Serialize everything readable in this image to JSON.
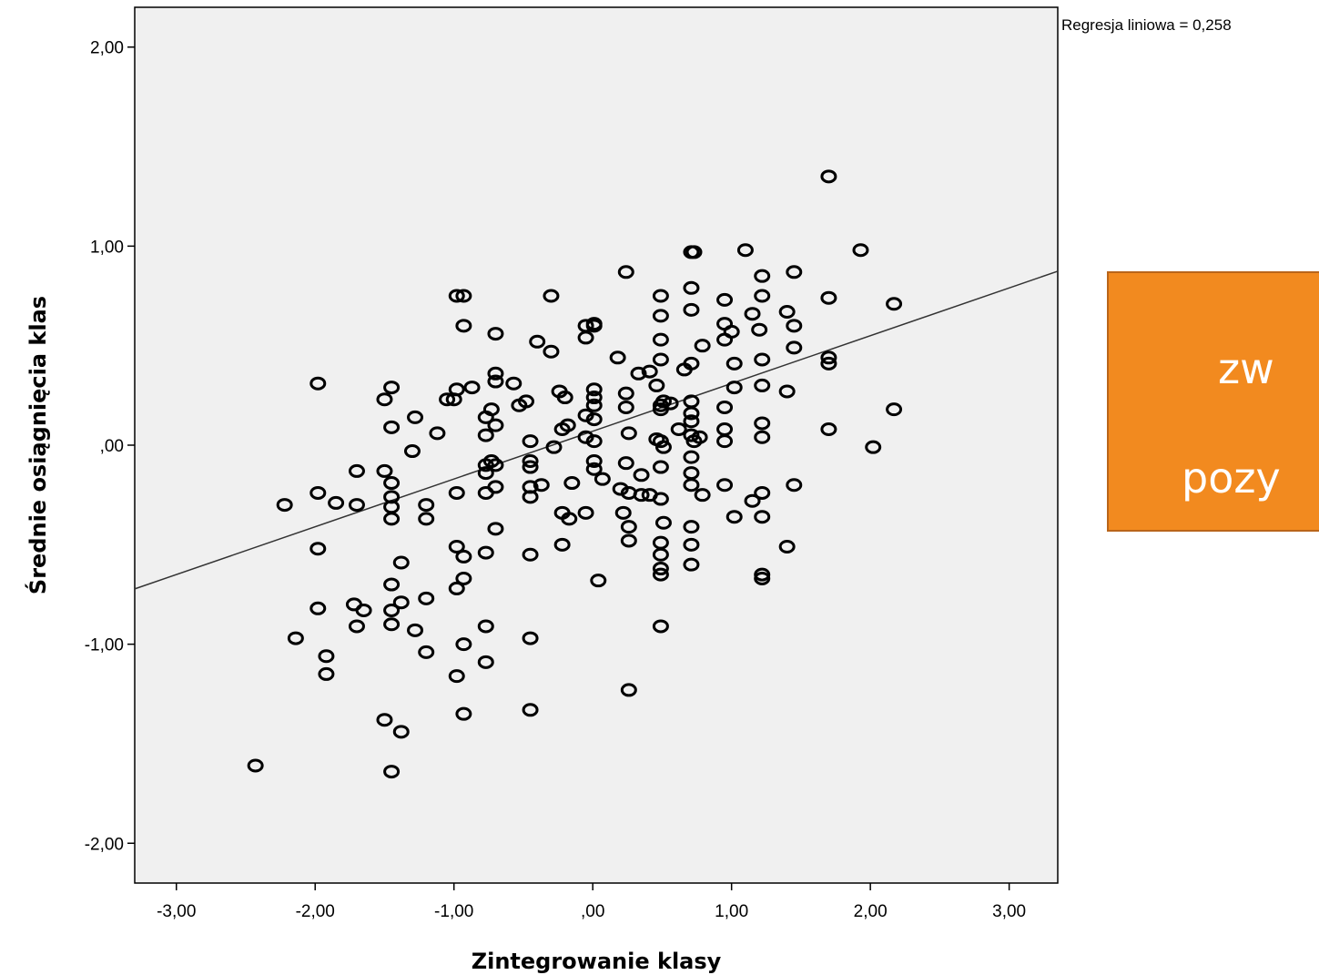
{
  "chart_data": {
    "type": "scatter",
    "xlabel": "Zintegrowanie klasy",
    "ylabel": "Średnie osiągnięcia klas",
    "xlim": [
      -3.3,
      3.35
    ],
    "ylim": [
      -2.2,
      2.2
    ],
    "xticks": [
      -3,
      -2,
      -1,
      0,
      1,
      2,
      3
    ],
    "yticks": [
      -2,
      -1,
      0,
      1,
      2
    ],
    "xtick_labels": [
      "-3,00",
      "-2,00",
      "-1,00",
      ",00",
      "1,00",
      "2,00",
      "3,00"
    ],
    "ytick_labels": [
      "-2,00",
      "-1,00",
      ",00",
      "1,00",
      "2,00"
    ],
    "grid": false,
    "fit_line": {
      "label": "Regresja liniowa = 0,258",
      "intercept": 0.07,
      "slope": 0.24
    },
    "points": [
      [
        -2.43,
        -1.61
      ],
      [
        -2.22,
        -0.3
      ],
      [
        -2.14,
        -0.97
      ],
      [
        -1.98,
        0.31
      ],
      [
        -1.98,
        -0.24
      ],
      [
        -1.98,
        -0.52
      ],
      [
        -1.98,
        -0.82
      ],
      [
        -1.92,
        -1.06
      ],
      [
        -1.92,
        -1.15
      ],
      [
        -1.85,
        -0.29
      ],
      [
        -1.72,
        -0.8
      ],
      [
        -1.7,
        -0.13
      ],
      [
        -1.7,
        -0.3
      ],
      [
        -1.7,
        -0.91
      ],
      [
        -1.65,
        -0.83
      ],
      [
        -1.5,
        0.23
      ],
      [
        -1.5,
        -0.13
      ],
      [
        -1.5,
        -1.38
      ],
      [
        -1.45,
        0.29
      ],
      [
        -1.45,
        0.09
      ],
      [
        -1.45,
        -0.19
      ],
      [
        -1.45,
        -0.26
      ],
      [
        -1.45,
        -0.31
      ],
      [
        -1.45,
        -0.37
      ],
      [
        -1.45,
        -0.7
      ],
      [
        -1.45,
        -0.83
      ],
      [
        -1.45,
        -0.9
      ],
      [
        -1.45,
        -1.64
      ],
      [
        -1.38,
        -0.59
      ],
      [
        -1.38,
        -0.79
      ],
      [
        -1.38,
        -1.44
      ],
      [
        -1.3,
        -0.03
      ],
      [
        -1.28,
        0.14
      ],
      [
        -1.28,
        -0.93
      ],
      [
        -1.2,
        -0.3
      ],
      [
        -1.2,
        -0.37
      ],
      [
        -1.2,
        -0.77
      ],
      [
        -1.2,
        -1.04
      ],
      [
        -1.12,
        0.06
      ],
      [
        -1.05,
        0.23
      ],
      [
        -1.0,
        0.23
      ],
      [
        -0.98,
        0.75
      ],
      [
        -0.98,
        0.28
      ],
      [
        -0.98,
        -0.24
      ],
      [
        -0.98,
        -0.51
      ],
      [
        -0.98,
        -0.72
      ],
      [
        -0.98,
        -1.16
      ],
      [
        -0.93,
        0.75
      ],
      [
        -0.93,
        0.6
      ],
      [
        -0.93,
        -0.56
      ],
      [
        -0.93,
        -0.67
      ],
      [
        -0.93,
        -1.0
      ],
      [
        -0.93,
        -1.35
      ],
      [
        -0.87,
        0.29
      ],
      [
        -0.77,
        0.14
      ],
      [
        -0.77,
        0.05
      ],
      [
        -0.77,
        -0.1
      ],
      [
        -0.77,
        -0.14
      ],
      [
        -0.77,
        -0.24
      ],
      [
        -0.77,
        -0.54
      ],
      [
        -0.77,
        -0.91
      ],
      [
        -0.77,
        -1.09
      ],
      [
        -0.73,
        0.18
      ],
      [
        -0.73,
        -0.08
      ],
      [
        -0.7,
        0.56
      ],
      [
        -0.7,
        0.36
      ],
      [
        -0.7,
        0.32
      ],
      [
        -0.7,
        0.1
      ],
      [
        -0.7,
        -0.1
      ],
      [
        -0.7,
        -0.21
      ],
      [
        -0.7,
        -0.42
      ],
      [
        -0.57,
        0.31
      ],
      [
        -0.53,
        0.2
      ],
      [
        -0.48,
        0.22
      ],
      [
        -0.45,
        0.02
      ],
      [
        -0.45,
        -0.08
      ],
      [
        -0.45,
        -0.11
      ],
      [
        -0.45,
        -0.21
      ],
      [
        -0.45,
        -0.26
      ],
      [
        -0.45,
        -0.55
      ],
      [
        -0.45,
        -0.97
      ],
      [
        -0.45,
        -1.33
      ],
      [
        -0.4,
        0.52
      ],
      [
        -0.37,
        -0.2
      ],
      [
        -0.3,
        0.75
      ],
      [
        -0.3,
        0.47
      ],
      [
        -0.28,
        -0.01
      ],
      [
        -0.24,
        0.27
      ],
      [
        -0.22,
        0.08
      ],
      [
        -0.22,
        -0.34
      ],
      [
        -0.22,
        -0.5
      ],
      [
        -0.2,
        0.24
      ],
      [
        -0.18,
        0.1
      ],
      [
        -0.17,
        -0.37
      ],
      [
        -0.15,
        -0.19
      ],
      [
        -0.05,
        0.6
      ],
      [
        -0.05,
        0.54
      ],
      [
        -0.05,
        0.15
      ],
      [
        -0.05,
        0.04
      ],
      [
        -0.05,
        -0.34
      ],
      [
        0.01,
        0.61
      ],
      [
        0.01,
        0.6
      ],
      [
        0.01,
        0.28
      ],
      [
        0.01,
        0.24
      ],
      [
        0.01,
        0.2
      ],
      [
        0.01,
        0.13
      ],
      [
        0.01,
        0.02
      ],
      [
        0.01,
        -0.08
      ],
      [
        0.01,
        -0.12
      ],
      [
        0.04,
        -0.68
      ],
      [
        0.07,
        -0.17
      ],
      [
        0.18,
        0.44
      ],
      [
        0.2,
        -0.22
      ],
      [
        0.22,
        -0.34
      ],
      [
        0.24,
        0.87
      ],
      [
        0.24,
        0.26
      ],
      [
        0.24,
        0.19
      ],
      [
        0.24,
        -0.09
      ],
      [
        0.26,
        0.06
      ],
      [
        0.26,
        -0.24
      ],
      [
        0.26,
        -0.41
      ],
      [
        0.26,
        -0.48
      ],
      [
        0.26,
        -1.23
      ],
      [
        0.33,
        0.36
      ],
      [
        0.35,
        -0.15
      ],
      [
        0.35,
        -0.25
      ],
      [
        0.41,
        0.37
      ],
      [
        0.41,
        -0.25
      ],
      [
        0.46,
        0.3
      ],
      [
        0.46,
        0.03
      ],
      [
        0.49,
        0.75
      ],
      [
        0.49,
        0.65
      ],
      [
        0.49,
        0.53
      ],
      [
        0.49,
        0.43
      ],
      [
        0.49,
        0.2
      ],
      [
        0.49,
        0.18
      ],
      [
        0.49,
        0.02
      ],
      [
        0.49,
        -0.11
      ],
      [
        0.49,
        -0.27
      ],
      [
        0.49,
        -0.49
      ],
      [
        0.49,
        -0.55
      ],
      [
        0.49,
        -0.62
      ],
      [
        0.49,
        -0.65
      ],
      [
        0.49,
        -0.91
      ],
      [
        0.51,
        0.22
      ],
      [
        0.51,
        -0.01
      ],
      [
        0.51,
        -0.39
      ],
      [
        0.56,
        0.21
      ],
      [
        0.62,
        0.08
      ],
      [
        0.66,
        0.38
      ],
      [
        0.71,
        0.97
      ],
      [
        0.71,
        0.79
      ],
      [
        0.71,
        0.68
      ],
      [
        0.71,
        0.41
      ],
      [
        0.71,
        0.22
      ],
      [
        0.71,
        0.16
      ],
      [
        0.71,
        0.12
      ],
      [
        0.71,
        0.05
      ],
      [
        0.71,
        -0.06
      ],
      [
        0.71,
        -0.14
      ],
      [
        0.71,
        -0.2
      ],
      [
        0.71,
        -0.41
      ],
      [
        0.71,
        -0.5
      ],
      [
        0.71,
        -0.6
      ],
      [
        0.73,
        0.97
      ],
      [
        0.73,
        0.02
      ],
      [
        0.77,
        0.04
      ],
      [
        0.79,
        0.5
      ],
      [
        0.79,
        -0.25
      ],
      [
        0.95,
        0.73
      ],
      [
        0.95,
        0.61
      ],
      [
        0.95,
        0.53
      ],
      [
        0.95,
        0.19
      ],
      [
        0.95,
        0.08
      ],
      [
        0.95,
        0.02
      ],
      [
        0.95,
        -0.2
      ],
      [
        1.0,
        0.57
      ],
      [
        1.02,
        0.41
      ],
      [
        1.02,
        0.29
      ],
      [
        1.02,
        -0.36
      ],
      [
        1.1,
        0.98
      ],
      [
        1.15,
        0.66
      ],
      [
        1.15,
        -0.28
      ],
      [
        1.22,
        0.85
      ],
      [
        1.22,
        0.75
      ],
      [
        1.22,
        0.43
      ],
      [
        1.22,
        0.3
      ],
      [
        1.22,
        0.11
      ],
      [
        1.22,
        0.04
      ],
      [
        1.22,
        -0.24
      ],
      [
        1.22,
        -0.36
      ],
      [
        1.22,
        -0.65
      ],
      [
        1.22,
        -0.67
      ],
      [
        1.4,
        0.67
      ],
      [
        1.4,
        0.27
      ],
      [
        1.4,
        -0.51
      ],
      [
        1.45,
        0.87
      ],
      [
        1.45,
        0.6
      ],
      [
        1.45,
        0.49
      ],
      [
        1.45,
        -0.2
      ],
      [
        1.7,
        1.35
      ],
      [
        1.7,
        0.74
      ],
      [
        1.7,
        0.44
      ],
      [
        1.7,
        0.41
      ],
      [
        1.7,
        0.08
      ],
      [
        1.93,
        0.98
      ],
      [
        2.02,
        -0.01
      ],
      [
        2.17,
        0.71
      ],
      [
        2.17,
        0.18
      ],
      [
        1.2,
        0.58
      ]
    ]
  },
  "callout": {
    "line1": "zw",
    "line2": "pozy"
  }
}
